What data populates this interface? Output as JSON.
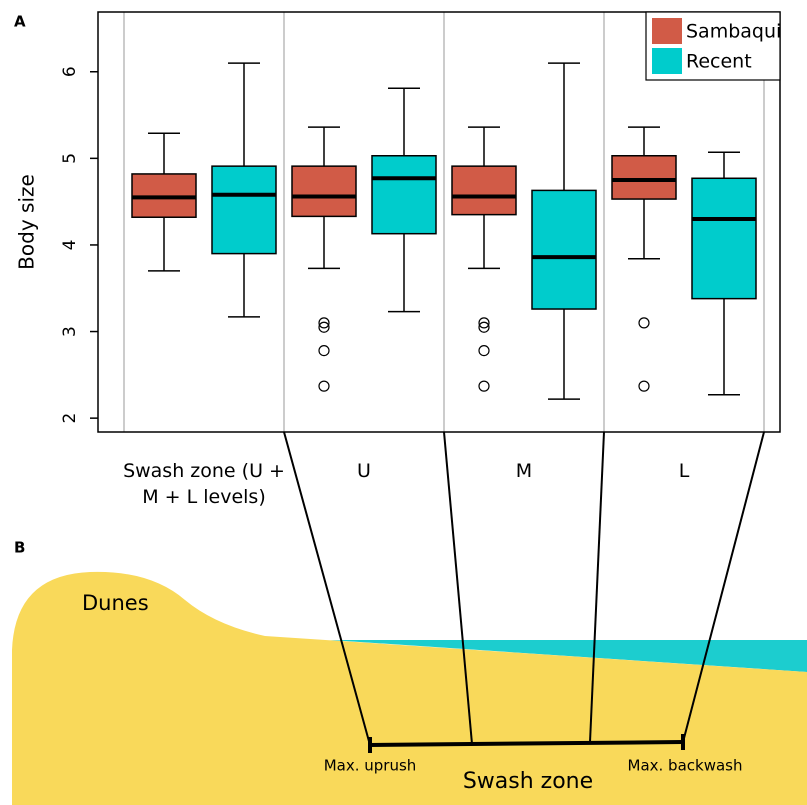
{
  "chart_data": {
    "type": "box",
    "panel_label": "A",
    "y_label": "Body size",
    "categories": [
      "Swash zone (U + M + L levels)",
      "U",
      "M",
      "L"
    ],
    "series": [
      {
        "name": "Sambaqui",
        "color": "#d15b47",
        "values": [
          {
            "min": 3.7,
            "q1": 4.32,
            "median": 4.55,
            "q3": 4.82,
            "max": 5.29,
            "outliers": []
          },
          {
            "min": 3.73,
            "q1": 4.33,
            "median": 4.56,
            "q3": 4.91,
            "max": 5.36,
            "outliers": [
              3.1,
              3.05,
              2.78,
              2.37
            ]
          },
          {
            "min": 3.73,
            "q1": 4.35,
            "median": 4.56,
            "q3": 4.91,
            "max": 5.36,
            "outliers": [
              3.1,
              3.05,
              2.78,
              2.37
            ]
          },
          {
            "min": 3.84,
            "q1": 4.53,
            "median": 4.75,
            "q3": 5.03,
            "max": 5.36,
            "outliers": [
              3.1,
              2.37
            ]
          }
        ]
      },
      {
        "name": "Recent",
        "color": "#00cccc",
        "values": [
          {
            "min": 3.17,
            "q1": 3.9,
            "median": 4.58,
            "q3": 4.91,
            "max": 6.1,
            "outliers": []
          },
          {
            "min": 3.23,
            "q1": 4.13,
            "median": 4.77,
            "q3": 5.03,
            "max": 5.81,
            "outliers": []
          },
          {
            "min": 2.22,
            "q1": 3.26,
            "median": 3.86,
            "q3": 4.63,
            "max": 6.1,
            "outliers": []
          },
          {
            "min": 2.27,
            "q1": 3.38,
            "median": 4.3,
            "q3": 4.77,
            "max": 5.07,
            "outliers": []
          }
        ]
      }
    ],
    "ylim": [
      1.84,
      6.69
    ],
    "yticks": [
      2,
      3,
      4,
      5,
      6
    ],
    "legend": "top-right"
  },
  "diagram": {
    "panel_label": "B",
    "dunes": "Dunes",
    "max_uprush": "Max. uprush",
    "swash_zone": "Swash zone",
    "max_backwash": "Max. backwash"
  }
}
